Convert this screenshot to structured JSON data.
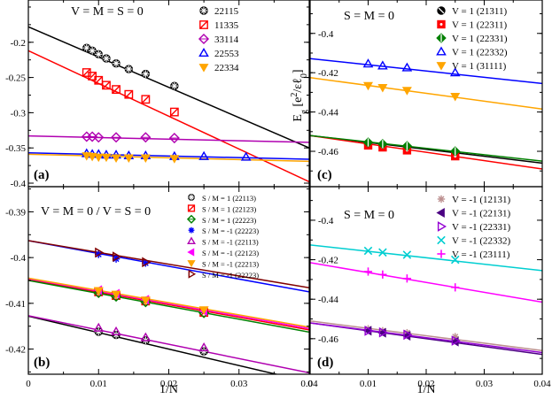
{
  "chart_data": [
    {
      "id": "a",
      "type": "scatter",
      "panel_label": "(a)",
      "annotation": "V = M = S = 0",
      "xlim": [
        0,
        0.04
      ],
      "ylim": [
        -0.405,
        -0.14
      ],
      "xticks": [],
      "xtick_labels": [],
      "yticks": [
        -0.2,
        -0.25,
        -0.3,
        -0.35,
        -0.4
      ],
      "ytick_labels": [
        "-0.2",
        "-0.25",
        "-0.3",
        "-0.35",
        "-0.4"
      ],
      "legend_position": "top-right",
      "series": [
        {
          "name": "22115",
          "color": "#000000",
          "marker": "circle-x",
          "x": [
            0.0083,
            0.0091,
            0.01,
            0.0111,
            0.0125,
            0.0143,
            0.0167,
            0.0208
          ],
          "y": [
            -0.208,
            -0.212,
            -0.217,
            -0.223,
            -0.23,
            -0.238,
            -0.245,
            -0.262
          ],
          "fit": [
            -0.178,
            -0.35
          ]
        },
        {
          "name": "11335",
          "color": "#ff0000",
          "marker": "square-slash",
          "x": [
            0.0083,
            0.0091,
            0.01,
            0.0111,
            0.0125,
            0.0143,
            0.0167,
            0.0208
          ],
          "y": [
            -0.243,
            -0.248,
            -0.254,
            -0.261,
            -0.267,
            -0.274,
            -0.281,
            -0.299
          ],
          "fit": [
            -0.212,
            -0.398
          ]
        },
        {
          "name": "33114",
          "color": "#b000b0",
          "marker": "diamond",
          "x": [
            0.0083,
            0.0091,
            0.01,
            0.0125,
            0.0167,
            0.0208
          ],
          "y": [
            -0.334,
            -0.334,
            -0.335,
            -0.335,
            -0.335,
            -0.336
          ],
          "fit": [
            -0.333,
            -0.342
          ]
        },
        {
          "name": "22553",
          "color": "#0000ff",
          "marker": "triangle-up",
          "x": [
            0.0083,
            0.0091,
            0.01,
            0.0111,
            0.0125,
            0.0143,
            0.0167,
            0.0208,
            0.025,
            0.031
          ],
          "y": [
            -0.358,
            -0.359,
            -0.359,
            -0.36,
            -0.36,
            -0.361,
            -0.361,
            -0.362,
            -0.362,
            -0.363
          ],
          "fit": [
            -0.357,
            -0.366
          ]
        },
        {
          "name": "22334",
          "color": "#ffa500",
          "marker": "triangle-down",
          "x": [
            0.0083,
            0.0091,
            0.01,
            0.0111,
            0.0125,
            0.0143,
            0.0167,
            0.0208
          ],
          "y": [
            -0.361,
            -0.362,
            -0.363,
            -0.363,
            -0.364,
            -0.364,
            -0.364,
            -0.365
          ],
          "fit": [
            -0.359,
            -0.369
          ]
        }
      ]
    },
    {
      "id": "b",
      "type": "scatter",
      "panel_label": "(b)",
      "annotation": "V = M = 0 / V = S = 0",
      "xlabel": "1/N",
      "xlim": [
        0,
        0.04
      ],
      "ylim": [
        -0.4255,
        -0.3845
      ],
      "xticks": [
        0,
        0.01,
        0.02,
        0.03,
        0.04
      ],
      "xtick_labels": [
        "0",
        "0.01",
        "0.02",
        "0.03",
        "0.04"
      ],
      "yticks": [
        -0.39,
        -0.4,
        -0.41,
        -0.42
      ],
      "ytick_labels": [
        "-0.39",
        "-0.4",
        "-0.41",
        "-0.42"
      ],
      "legend_position": "top-right",
      "series": [
        {
          "name": "S / M = 1 (22113)",
          "color": "#000000",
          "marker": "circle-x",
          "x": [
            0.01,
            0.0125,
            0.0167,
            0.025
          ],
          "y": [
            -0.4162,
            -0.4169,
            -0.4181,
            -0.4205
          ],
          "fit": [
            -0.4128,
            -0.4272
          ]
        },
        {
          "name": "S / M = 1 (22123)",
          "color": "#ff0000",
          "marker": "square-slash",
          "x": [
            0.01,
            0.0125,
            0.0167,
            0.025
          ],
          "y": [
            -0.4075,
            -0.4083,
            -0.4095,
            -0.412
          ],
          "fit": [
            -0.4048,
            -0.4158
          ]
        },
        {
          "name": "S / M = 1 (22223)",
          "color": "#008000",
          "marker": "diamond",
          "x": [
            0.01,
            0.0125,
            0.0167,
            0.025
          ],
          "y": [
            -0.4077,
            -0.4085,
            -0.4097,
            -0.4121
          ],
          "fit": [
            -0.405,
            -0.4163
          ]
        },
        {
          "name": "S / M = -1 (22223)",
          "color": "#0000ff",
          "marker": "star",
          "x": [
            0.01,
            0.0125,
            0.0167
          ],
          "y": [
            -0.3993,
            -0.4003,
            -0.4012
          ],
          "fit": [
            -0.3963,
            -0.4075
          ]
        },
        {
          "name": "S / M = -1 (22113)",
          "color": "#b000b0",
          "marker": "triangle-up",
          "x": [
            0.01,
            0.0125,
            0.0167,
            0.025
          ],
          "y": [
            -0.4154,
            -0.4162,
            -0.4175,
            -0.4197
          ],
          "fit": [
            -0.4127,
            -0.4252
          ]
        },
        {
          "name": "S / M = -1 (22123)",
          "color": "#ff00ff",
          "marker": "triangle-left",
          "x": [
            0.01,
            0.0125,
            0.0167,
            0.025
          ],
          "y": [
            -0.4071,
            -0.4079,
            -0.4092,
            -0.4117
          ],
          "fit": [
            -0.4046,
            -0.4155
          ]
        },
        {
          "name": "S / M = -1 (22213)",
          "color": "#ffa500",
          "marker": "triangle-down",
          "x": [
            0.01,
            0.0125,
            0.0167,
            0.025
          ],
          "y": [
            -0.4072,
            -0.408,
            -0.4093,
            -0.4114
          ],
          "fit": [
            -0.4045,
            -0.4152
          ]
        },
        {
          "name": "S / M = -1 (22223)",
          "color": "#800000",
          "marker": "triangle-right",
          "x": [
            0.01,
            0.0125,
            0.0167
          ],
          "y": [
            -0.3989,
            -0.3998,
            -0.401
          ],
          "fit": [
            -0.3963,
            -0.4066
          ]
        }
      ]
    },
    {
      "id": "c",
      "type": "scatter",
      "panel_label": "(c)",
      "annotation": "S = M = 0",
      "ylabel": "E_g [e^2/εℓ_0]",
      "xlim": [
        0,
        0.04
      ],
      "ylim": [
        -0.478,
        -0.383
      ],
      "xticks": [],
      "xtick_labels": [],
      "yticks": [
        -0.4,
        -0.42,
        -0.44,
        -0.46
      ],
      "ytick_labels": [
        "-0.4",
        "-0.42",
        "-0.44",
        "-0.46"
      ],
      "legend_position": "top-right",
      "series": [
        {
          "name": "V = 1 (21311)",
          "color": "#000000",
          "marker": "circle-slash",
          "x": [
            0.01,
            0.0125,
            0.0167,
            0.025
          ],
          "y": [
            -0.4565,
            -0.4575,
            -0.4585,
            -0.461
          ],
          "fit": [
            -0.452,
            -0.466
          ]
        },
        {
          "name": "V = 1 (22311)",
          "color": "#ff0000",
          "marker": "square-dot",
          "x": [
            0.01,
            0.0125,
            0.0167,
            0.025
          ],
          "y": [
            -0.457,
            -0.458,
            -0.4595,
            -0.4625
          ],
          "fit": [
            -0.452,
            -0.469
          ]
        },
        {
          "name": "V = 1 (22331)",
          "color": "#008000",
          "marker": "diamond-bar",
          "x": [
            0.01,
            0.0125,
            0.0167,
            0.025
          ],
          "y": [
            -0.4555,
            -0.4563,
            -0.4573,
            -0.46
          ],
          "fit": [
            -0.452,
            -0.465
          ]
        },
        {
          "name": "V = 1 (22332)",
          "color": "#0000ff",
          "marker": "triangle-up",
          "x": [
            0.01,
            0.0125,
            0.0167,
            0.025
          ],
          "y": [
            -0.4155,
            -0.4165,
            -0.4175,
            -0.42
          ],
          "fit": [
            -0.4128,
            -0.4255
          ]
        },
        {
          "name": "V = 1 (31111)",
          "color": "#ffa500",
          "marker": "triangle-down",
          "x": [
            0.01,
            0.0125,
            0.0167,
            0.025
          ],
          "y": [
            -0.4265,
            -0.4275,
            -0.429,
            -0.432
          ],
          "fit": [
            -0.4225,
            -0.4385
          ]
        }
      ]
    },
    {
      "id": "d",
      "type": "scatter",
      "panel_label": "(d)",
      "annotation": "S = M = 0",
      "xlabel": "1/N",
      "xlim": [
        0,
        0.04
      ],
      "ylim": [
        -0.478,
        -0.383
      ],
      "xticks": [
        0,
        0.01,
        0.02,
        0.03,
        0.04
      ],
      "xtick_labels": [
        "0",
        "0.01",
        "0.02",
        "0.03",
        "0.04"
      ],
      "yticks": [
        -0.4,
        -0.42,
        -0.44,
        -0.46
      ],
      "ytick_labels": [
        "-0.4",
        "-0.42",
        "-0.44",
        "-0.46"
      ],
      "legend_position": "top-right",
      "series": [
        {
          "name": "V = -1 (12131)",
          "color": "#bc8f8f",
          "marker": "asterisk",
          "x": [
            0.01,
            0.0125,
            0.0167,
            0.025
          ],
          "y": [
            -0.455,
            -0.456,
            -0.457,
            -0.459
          ],
          "fit": [
            -0.451,
            -0.466
          ]
        },
        {
          "name": "V = -1 (22131)",
          "color": "#4b0082",
          "marker": "triangle-left",
          "x": [
            0.01,
            0.0125,
            0.0167,
            0.025
          ],
          "y": [
            -0.456,
            -0.457,
            -0.4585,
            -0.4615
          ],
          "fit": [
            -0.452,
            -0.468
          ]
        },
        {
          "name": "V = -1 (22331)",
          "color": "#9400d3",
          "marker": "triangle-right",
          "x": [
            0.01,
            0.0125,
            0.0167,
            0.025
          ],
          "y": [
            -0.456,
            -0.4568,
            -0.458,
            -0.461
          ],
          "fit": [
            -0.452,
            -0.467
          ]
        },
        {
          "name": "V = -1 (22332)",
          "color": "#00ced1",
          "marker": "x",
          "x": [
            0.01,
            0.0125,
            0.0167,
            0.025
          ],
          "y": [
            -0.4155,
            -0.4163,
            -0.4175,
            -0.42
          ],
          "fit": [
            -0.4125,
            -0.4255
          ]
        },
        {
          "name": "V = -1 (23111)",
          "color": "#ff00ff",
          "marker": "plus",
          "x": [
            0.01,
            0.0125,
            0.0167,
            0.025
          ],
          "y": [
            -0.426,
            -0.4275,
            -0.4295,
            -0.434
          ],
          "fit": [
            -0.4215,
            -0.4415
          ]
        }
      ]
    }
  ]
}
